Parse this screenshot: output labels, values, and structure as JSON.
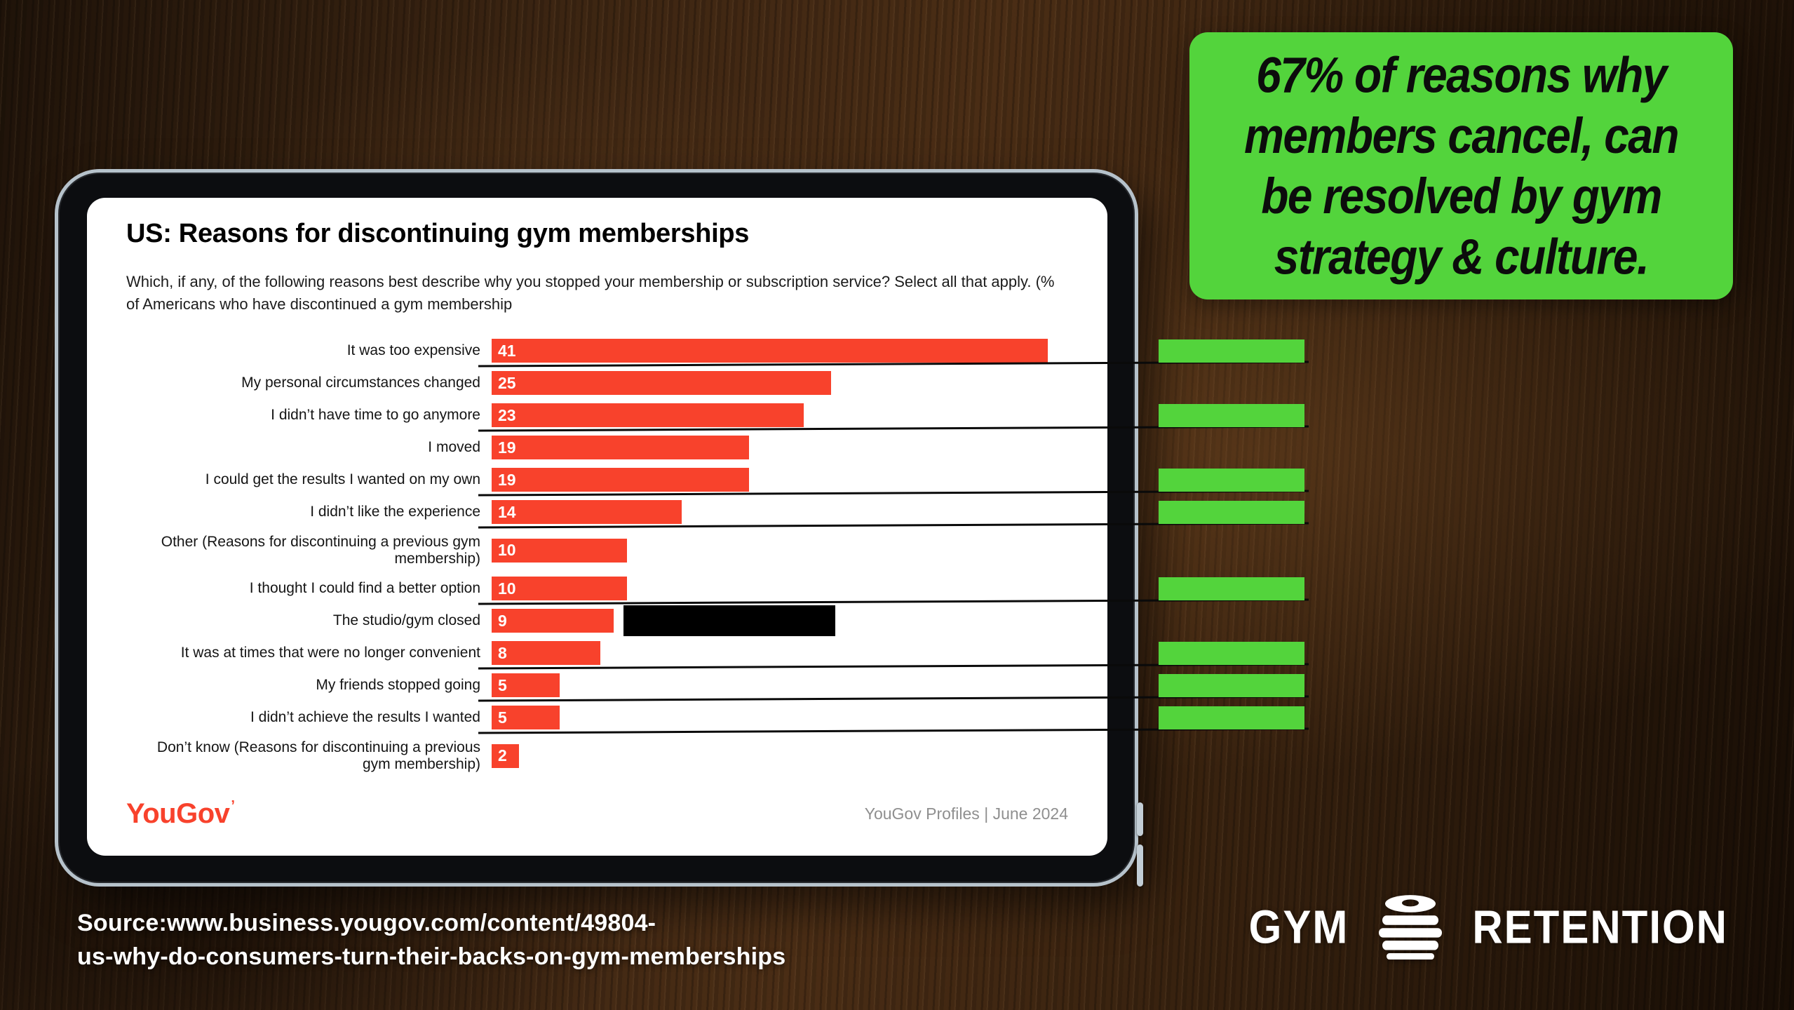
{
  "quote_box": {
    "lines": [
      "67% of reasons why",
      "members cancel, can",
      "be resolved by gym",
      "strategy & culture."
    ],
    "bg_color": "#53d43c",
    "text_color": "#0c0c0c"
  },
  "chart_data": {
    "type": "bar",
    "orientation": "horizontal",
    "title": "US: Reasons for discontinuing gym memberships",
    "subtitle": "Which, if any, of the following reasons best describe why you stopped your membership or subscription service? Select all that apply. (% of Americans who have discontinued a gym membership",
    "xlabel": "",
    "ylabel": "",
    "xlim": [
      0,
      45
    ],
    "grid": false,
    "bar_color": "#f8422c",
    "value_label_color": "#ffffff",
    "categories": [
      "It was too expensive",
      "My personal circumstances changed",
      "I didn’t have time to go anymore",
      "I moved",
      "I could get the results I wanted on my own",
      "I didn’t like the experience",
      "Other (Reasons for discontinuing a previous gym membership)",
      "I thought I could find a better option",
      "The studio/gym closed",
      "It was at times that were no longer convenient",
      "My friends stopped going",
      "I didn’t achieve the results I wanted",
      "Don’t know (Reasons for discontinuing a previous gym membership)"
    ],
    "values": [
      41,
      25,
      23,
      19,
      19,
      14,
      10,
      10,
      9,
      8,
      5,
      5,
      2
    ],
    "highlighted_rows": [
      0,
      2,
      4,
      5,
      7,
      9,
      10,
      11
    ],
    "two_line_rows": [
      6,
      12
    ],
    "highlight_color": "#53d43c",
    "redaction_row": 8,
    "brand": "YouGov",
    "brand_mark": "’",
    "caption": "YouGov Profiles | June 2024"
  },
  "source": {
    "line1": "Source:www.business.yougov.com/content/49804-",
    "line2": "us-why-do-consumers-turn-their-backs-on-gym-memberships"
  },
  "brand_logo": {
    "left": "GYM",
    "right": "RETENTION",
    "icon": "weight-plates-icon"
  }
}
